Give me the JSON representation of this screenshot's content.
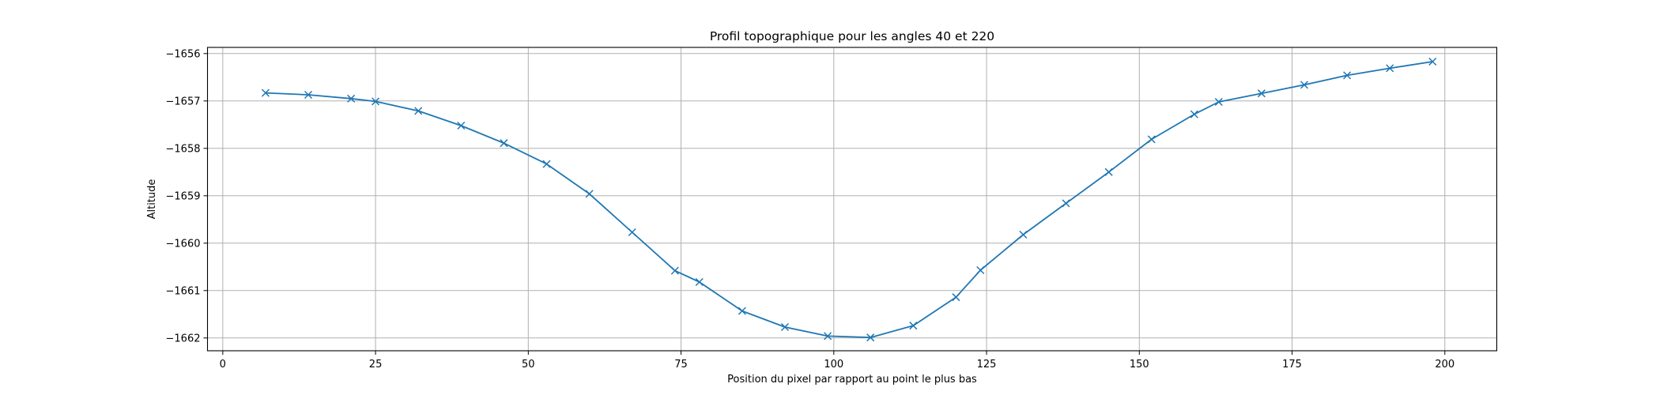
{
  "chart_data": {
    "type": "line",
    "title": "Profil topographique pour les angles 40 et 220",
    "xlabel": "Position du pixel par rapport au point le plus bas",
    "ylabel": "Altitude",
    "xlim": [
      -2.5,
      208.5
    ],
    "ylim": [
      -1662.27,
      -1655.87
    ],
    "xticks": [
      0,
      25,
      50,
      75,
      100,
      125,
      150,
      175,
      200
    ],
    "xtick_labels": [
      "0",
      "25",
      "50",
      "75",
      "100",
      "125",
      "150",
      "175",
      "200"
    ],
    "yticks": [
      -1656,
      -1657,
      -1658,
      -1659,
      -1660,
      -1661,
      -1662
    ],
    "ytick_labels": [
      "−1656",
      "−1657",
      "−1658",
      "−1659",
      "−1660",
      "−1661",
      "−1662"
    ],
    "grid": true,
    "colors": {
      "series": "#1f77b4",
      "grid": "#b0b0b0",
      "frame": "#000000"
    },
    "series": [
      {
        "marker": "x",
        "x": [
          7,
          14,
          21,
          25,
          32,
          39,
          46,
          53,
          60,
          67,
          74,
          78,
          85,
          92,
          99,
          106,
          113,
          120,
          124,
          131,
          138,
          145,
          152,
          159,
          163,
          170,
          177,
          184,
          191,
          198
        ],
        "y": [
          -1656.83,
          -1656.87,
          -1656.95,
          -1657.01,
          -1657.21,
          -1657.52,
          -1657.89,
          -1658.33,
          -1658.96,
          -1659.77,
          -1660.58,
          -1660.82,
          -1661.43,
          -1661.77,
          -1661.96,
          -1661.99,
          -1661.74,
          -1661.14,
          -1660.57,
          -1659.82,
          -1659.16,
          -1658.5,
          -1657.81,
          -1657.28,
          -1657.02,
          -1656.84,
          -1656.66,
          -1656.46,
          -1656.31,
          -1656.17
        ]
      }
    ]
  }
}
